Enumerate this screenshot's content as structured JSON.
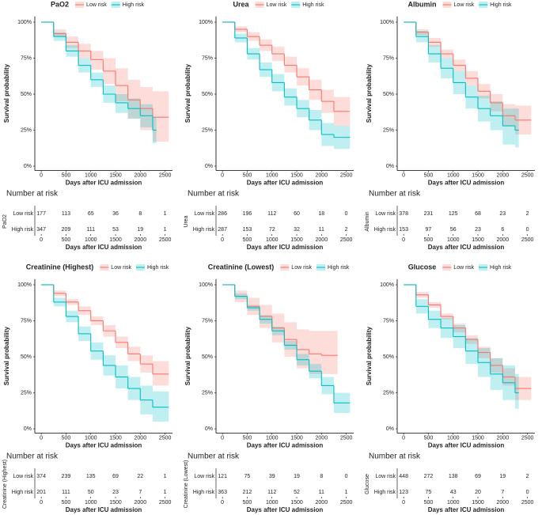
{
  "chart_data": [
    {
      "type": "line",
      "title": "PaO2",
      "x": [
        0,
        250,
        500,
        750,
        1000,
        1250,
        1500,
        1750,
        2000,
        2250,
        2500
      ],
      "series": [
        {
          "name": "Low risk",
          "color": "#F8766D",
          "values": [
            100,
            92,
            86,
            80,
            74,
            66,
            56,
            46,
            40,
            34,
            34
          ],
          "lower": [
            100,
            90,
            82,
            75,
            67,
            57,
            45,
            33,
            25,
            17,
            17
          ],
          "upper": [
            100,
            95,
            90,
            85,
            80,
            75,
            68,
            60,
            55,
            52,
            52
          ]
        },
        {
          "name": "High risk",
          "color": "#00BFC4",
          "values": [
            100,
            90,
            80,
            70,
            60,
            50,
            44,
            40,
            35,
            25,
            null
          ],
          "lower": [
            100,
            87,
            76,
            65,
            55,
            44,
            37,
            33,
            27,
            16,
            null
          ],
          "upper": [
            100,
            93,
            84,
            75,
            65,
            56,
            50,
            47,
            43,
            34,
            null
          ]
        }
      ],
      "xlim": [
        -130,
        2650
      ],
      "xticks": [
        0,
        500,
        1000,
        1500,
        2000,
        2500
      ],
      "ylim": [
        -3,
        104
      ],
      "yticks": [
        {
          "value": 0,
          "label": "0%"
        },
        {
          "value": 25,
          "label": "25%"
        },
        {
          "value": 50,
          "label": "50%"
        },
        {
          "value": 75,
          "label": "75%"
        },
        {
          "value": 100,
          "label": "100%"
        }
      ],
      "ylabel": "Survival probability",
      "xlabel": "Days after ICU admission",
      "risk_table": {
        "title": "Number at risk",
        "ylabel": "PaO2",
        "xlabel": "Days after ICU admission",
        "rows": [
          {
            "name": "Low risk",
            "values": [
              177,
              113,
              65,
              36,
              8,
              1
            ]
          },
          {
            "name": "High risk",
            "values": [
              347,
              209,
              111,
              53,
              19,
              1
            ]
          }
        ]
      }
    },
    {
      "type": "line",
      "title": "Urea",
      "x": [
        0,
        250,
        500,
        750,
        1000,
        1250,
        1500,
        1750,
        2000,
        2250,
        2500
      ],
      "series": [
        {
          "name": "Low risk",
          "color": "#F8766D",
          "values": [
            100,
            95,
            90,
            84,
            78,
            70,
            62,
            53,
            45,
            38,
            38
          ],
          "lower": [
            100,
            93,
            87,
            80,
            73,
            65,
            56,
            46,
            37,
            28,
            28
          ],
          "upper": [
            100,
            97,
            93,
            88,
            83,
            76,
            68,
            60,
            53,
            48,
            48
          ]
        },
        {
          "name": "High risk",
          "color": "#00BFC4",
          "values": [
            100,
            89,
            78,
            67,
            58,
            48,
            40,
            32,
            22,
            20,
            20
          ],
          "lower": [
            100,
            86,
            74,
            62,
            52,
            42,
            34,
            25,
            14,
            12,
            12
          ],
          "upper": [
            100,
            92,
            82,
            72,
            64,
            54,
            46,
            39,
            30,
            28,
            28
          ]
        }
      ],
      "xlim": [
        -130,
        2650
      ],
      "xticks": [
        0,
        500,
        1000,
        1500,
        2000,
        2500
      ],
      "ylim": [
        -3,
        104
      ],
      "yticks": [
        {
          "value": 0,
          "label": "0%"
        },
        {
          "value": 25,
          "label": "25%"
        },
        {
          "value": 50,
          "label": "50%"
        },
        {
          "value": 75,
          "label": "75%"
        },
        {
          "value": 100,
          "label": "100%"
        }
      ],
      "ylabel": "Survival probability",
      "xlabel": "Days after ICU admission",
      "risk_table": {
        "title": "Number at risk",
        "ylabel": "Urea",
        "xlabel": "Days after ICU admission",
        "rows": [
          {
            "name": "Low risk",
            "values": [
              286,
              196,
              112,
              60,
              18,
              0
            ]
          },
          {
            "name": "High risk",
            "values": [
              287,
              153,
              72,
              32,
              11,
              2
            ]
          }
        ]
      }
    },
    {
      "type": "line",
      "title": "Albumin",
      "x": [
        0,
        250,
        500,
        750,
        1000,
        1250,
        1500,
        1750,
        2000,
        2250,
        2500
      ],
      "series": [
        {
          "name": "Low risk",
          "color": "#F8766D",
          "values": [
            100,
            93,
            86,
            78,
            70,
            61,
            52,
            44,
            35,
            32,
            32
          ],
          "lower": [
            100,
            91,
            83,
            75,
            66,
            56,
            47,
            38,
            28,
            22,
            22
          ],
          "upper": [
            100,
            95,
            89,
            81,
            74,
            66,
            57,
            50,
            43,
            42,
            42
          ]
        },
        {
          "name": "High risk",
          "color": "#00BFC4",
          "values": [
            100,
            90,
            78,
            68,
            58,
            48,
            40,
            35,
            28,
            25,
            null
          ],
          "lower": [
            100,
            86,
            72,
            61,
            50,
            40,
            31,
            25,
            15,
            13,
            null
          ],
          "upper": [
            100,
            94,
            84,
            75,
            66,
            56,
            49,
            45,
            40,
            40,
            null
          ]
        }
      ],
      "xlim": [
        -130,
        2650
      ],
      "xticks": [
        0,
        500,
        1000,
        1500,
        2000,
        2500
      ],
      "ylim": [
        -3,
        104
      ],
      "yticks": [
        {
          "value": 0,
          "label": "0%"
        },
        {
          "value": 25,
          "label": "25%"
        },
        {
          "value": 50,
          "label": "50%"
        },
        {
          "value": 75,
          "label": "75%"
        },
        {
          "value": 100,
          "label": "100%"
        }
      ],
      "ylabel": "Survival probability",
      "xlabel": "Days after ICU admission",
      "risk_table": {
        "title": "Number at risk",
        "ylabel": "Albumin",
        "xlabel": "Days after ICU admission",
        "rows": [
          {
            "name": "Low risk",
            "values": [
              378,
              231,
              125,
              68,
              23,
              2
            ]
          },
          {
            "name": "High risk",
            "values": [
              153,
              97,
              56,
              23,
              6,
              0
            ]
          }
        ]
      }
    },
    {
      "type": "line",
      "title": "Creatinine (Highest)",
      "x": [
        0,
        250,
        500,
        750,
        1000,
        1250,
        1500,
        1750,
        2000,
        2250,
        2500
      ],
      "series": [
        {
          "name": "Low risk",
          "color": "#F8766D",
          "values": [
            100,
            94,
            88,
            82,
            75,
            68,
            60,
            52,
            45,
            38,
            38
          ],
          "lower": [
            100,
            92,
            86,
            79,
            72,
            64,
            56,
            47,
            39,
            30,
            30
          ],
          "upper": [
            100,
            96,
            90,
            85,
            78,
            72,
            64,
            57,
            51,
            47,
            47
          ]
        },
        {
          "name": "High risk",
          "color": "#00BFC4",
          "values": [
            100,
            88,
            78,
            66,
            54,
            44,
            36,
            28,
            20,
            15,
            15
          ],
          "lower": [
            100,
            85,
            74,
            61,
            48,
            37,
            28,
            20,
            10,
            5,
            5
          ],
          "upper": [
            100,
            91,
            82,
            71,
            60,
            51,
            44,
            36,
            30,
            26,
            26
          ]
        }
      ],
      "xlim": [
        -130,
        2650
      ],
      "xticks": [
        0,
        500,
        1000,
        1500,
        2000,
        2500
      ],
      "ylim": [
        -3,
        104
      ],
      "yticks": [
        {
          "value": 0,
          "label": "0%"
        },
        {
          "value": 25,
          "label": "25%"
        },
        {
          "value": 50,
          "label": "50%"
        },
        {
          "value": 75,
          "label": "75%"
        },
        {
          "value": 100,
          "label": "100%"
        }
      ],
      "ylabel": "Survival probability",
      "xlabel": "Days after ICU admission",
      "risk_table": {
        "title": "Number at risk",
        "ylabel": "Creatinine (Highest)",
        "xlabel": "Days after ICU admission",
        "rows": [
          {
            "name": "Low risk",
            "values": [
              374,
              239,
              135,
              69,
              22,
              1
            ]
          },
          {
            "name": "High risk",
            "values": [
              201,
              111,
              50,
              23,
              7,
              1
            ]
          }
        ]
      }
    },
    {
      "type": "line",
      "title": "Creatinine (Lowest)",
      "x": [
        0,
        250,
        500,
        750,
        1000,
        1250,
        1500,
        1750,
        2000,
        2250,
        2500
      ],
      "series": [
        {
          "name": "Low risk",
          "color": "#F8766D",
          "values": [
            100,
            92,
            85,
            78,
            70,
            62,
            55,
            52,
            51,
            51,
            null
          ],
          "lower": [
            100,
            88,
            79,
            70,
            60,
            50,
            42,
            38,
            38,
            38,
            null
          ],
          "upper": [
            100,
            96,
            91,
            86,
            80,
            74,
            69,
            68,
            68,
            68,
            null
          ]
        },
        {
          "name": "High risk",
          "color": "#00BFC4",
          "values": [
            100,
            92,
            84,
            76,
            68,
            58,
            48,
            40,
            30,
            18,
            18
          ],
          "lower": [
            100,
            90,
            82,
            73,
            65,
            55,
            44,
            35,
            24,
            11,
            11
          ],
          "upper": [
            100,
            94,
            86,
            79,
            71,
            61,
            52,
            45,
            36,
            25,
            25
          ]
        }
      ],
      "xlim": [
        -130,
        2650
      ],
      "xticks": [
        0,
        500,
        1000,
        1500,
        2000,
        2500
      ],
      "ylim": [
        -3,
        104
      ],
      "yticks": [
        {
          "value": 0,
          "label": "0%"
        },
        {
          "value": 25,
          "label": "25%"
        },
        {
          "value": 50,
          "label": "50%"
        },
        {
          "value": 75,
          "label": "75%"
        },
        {
          "value": 100,
          "label": "100%"
        }
      ],
      "ylabel": "Survival probability",
      "xlabel": "Days after ICU admission",
      "risk_table": {
        "title": "Number at risk",
        "ylabel": "Creatinine (Lowest)",
        "xlabel": "Days after ICU admission",
        "rows": [
          {
            "name": "Low risk",
            "values": [
              121,
              75,
              39,
              19,
              8,
              0
            ]
          },
          {
            "name": "High risk",
            "values": [
              363,
              212,
              112,
              52,
              11,
              1
            ]
          }
        ]
      }
    },
    {
      "type": "line",
      "title": "Glucose",
      "x": [
        0,
        250,
        500,
        750,
        1000,
        1250,
        1500,
        1750,
        2000,
        2250,
        2500
      ],
      "series": [
        {
          "name": "Low risk",
          "color": "#F8766D",
          "values": [
            100,
            93,
            86,
            78,
            70,
            62,
            53,
            44,
            36,
            28,
            28
          ],
          "lower": [
            100,
            91,
            84,
            76,
            67,
            59,
            49,
            39,
            30,
            20,
            20
          ],
          "upper": [
            100,
            95,
            88,
            80,
            73,
            65,
            57,
            49,
            42,
            36,
            36
          ]
        },
        {
          "name": "High risk",
          "color": "#00BFC4",
          "values": [
            100,
            85,
            76,
            70,
            64,
            54,
            46,
            38,
            32,
            25,
            null
          ],
          "lower": [
            100,
            80,
            70,
            63,
            56,
            45,
            36,
            27,
            20,
            14,
            null
          ],
          "upper": [
            100,
            90,
            82,
            77,
            72,
            63,
            56,
            49,
            44,
            38,
            null
          ]
        }
      ],
      "xlim": [
        -130,
        2650
      ],
      "xticks": [
        0,
        500,
        1000,
        1500,
        2000,
        2500
      ],
      "ylim": [
        -3,
        104
      ],
      "yticks": [
        {
          "value": 0,
          "label": "0%"
        },
        {
          "value": 25,
          "label": "25%"
        },
        {
          "value": 50,
          "label": "50%"
        },
        {
          "value": 75,
          "label": "75%"
        },
        {
          "value": 100,
          "label": "100%"
        }
      ],
      "ylabel": "Survival probability",
      "xlabel": "Days after ICU admission",
      "risk_table": {
        "title": "Number at risk",
        "ylabel": "Glucose",
        "xlabel": "Days after ICU admission",
        "rows": [
          {
            "name": "Low risk",
            "values": [
              448,
              272,
              138,
              69,
              19,
              2
            ]
          },
          {
            "name": "High risk",
            "values": [
              123,
              75,
              43,
              20,
              7,
              0
            ]
          }
        ]
      }
    }
  ]
}
